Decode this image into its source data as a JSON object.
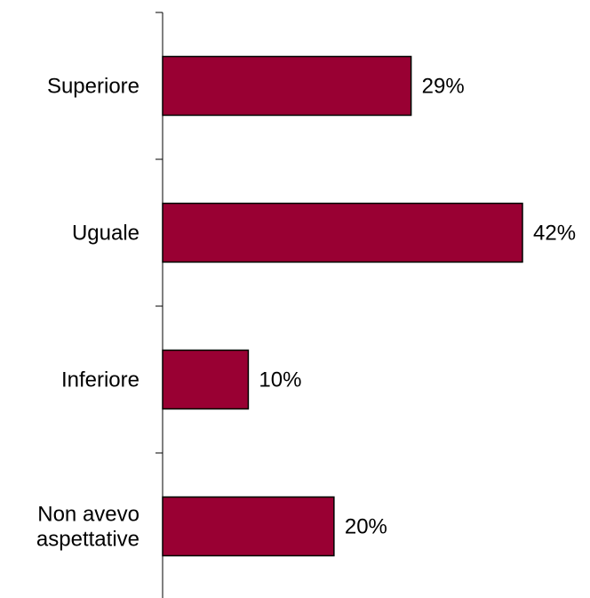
{
  "chart_data": {
    "type": "bar",
    "orientation": "horizontal",
    "categories": [
      [
        "Superiore"
      ],
      [
        "Uguale"
      ],
      [
        "Inferiore"
      ],
      [
        "Non avevo",
        "aspettative"
      ]
    ],
    "values": [
      29,
      42,
      10,
      20
    ],
    "value_labels": [
      "29%",
      "42%",
      "10%",
      "20%"
    ],
    "unit": "%",
    "xlim": [
      0,
      42
    ],
    "grid": false,
    "legend": "none",
    "bar_color": "#990033",
    "bar_outline_color": "#000000"
  }
}
